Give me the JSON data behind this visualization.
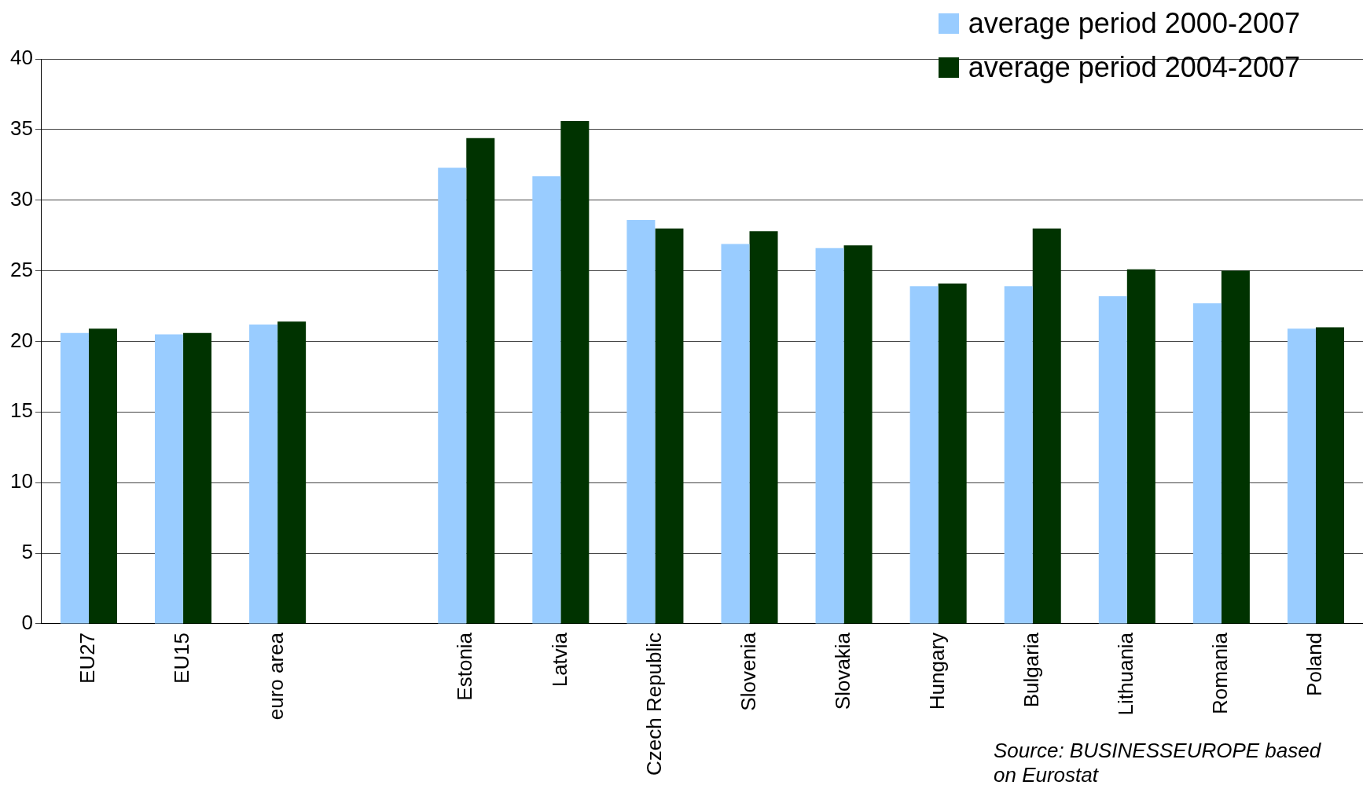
{
  "chart_data": {
    "type": "bar",
    "categories": [
      "EU27",
      "EU15",
      "euro area",
      null,
      "Estonia",
      "Latvia",
      "Czech Republic",
      "Slovenia",
      "Slovakia",
      "Hungary",
      "Bulgaria",
      "Lithuania",
      "Romania",
      "Poland"
    ],
    "series": [
      {
        "name": "average period 2000-2007",
        "color": "#99ccff",
        "values": [
          20.6,
          20.5,
          21.2,
          null,
          32.3,
          31.7,
          28.6,
          26.9,
          26.6,
          23.9,
          23.9,
          23.2,
          22.7,
          20.9
        ]
      },
      {
        "name": "average period 2004-2007",
        "color": "#003300",
        "values": [
          20.9,
          20.6,
          21.4,
          null,
          34.4,
          35.6,
          28.0,
          27.8,
          26.8,
          24.1,
          28.0,
          25.1,
          25.0,
          21.0
        ]
      }
    ],
    "ylim": [
      0,
      40
    ],
    "yticks": [
      0,
      5,
      10,
      15,
      20,
      25,
      30,
      35,
      40
    ],
    "grid": "y",
    "legend": "top right",
    "annotations": [
      "Source: BUSINESSEUROPE based on Eurostat"
    ]
  }
}
